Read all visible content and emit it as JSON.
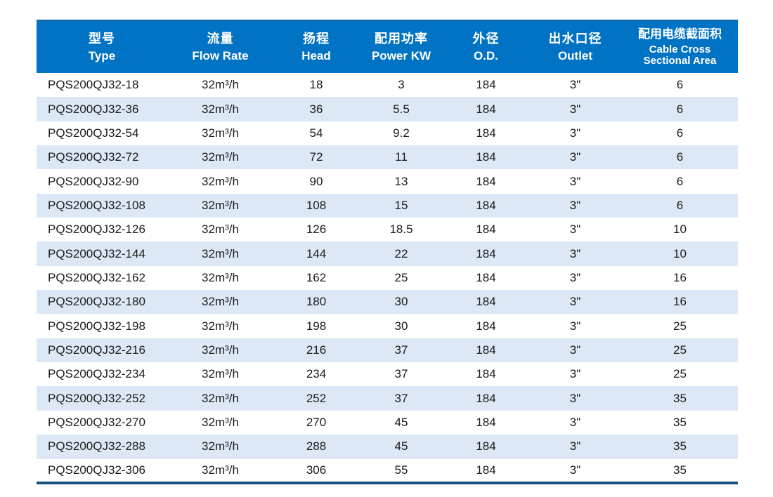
{
  "table": {
    "title_semantic": "submersible-pump-specifications",
    "column_keys": [
      "type",
      "flow-rate",
      "head",
      "power-kw",
      "od",
      "outlet",
      "cable-cross-sectional-area"
    ],
    "columns": [
      {
        "zh": "型号",
        "en": "Type"
      },
      {
        "zh": "流量",
        "en": "Flow Rate"
      },
      {
        "zh": "扬程",
        "en": "Head"
      },
      {
        "zh": "配用功率",
        "en": "Power KW"
      },
      {
        "zh": "外径",
        "en": "O.D."
      },
      {
        "zh": "出水口径",
        "en": "Outlet"
      },
      {
        "zh": "配用电缆截面积",
        "en": "Cable Cross Sectional Area"
      }
    ],
    "rows": [
      [
        "PQS200QJ32-18",
        "32m³/h",
        "18",
        "3",
        "184",
        "3\"",
        "6"
      ],
      [
        "PQS200QJ32-36",
        "32m³/h",
        "36",
        "5.5",
        "184",
        "3\"",
        "6"
      ],
      [
        "PQS200QJ32-54",
        "32m³/h",
        "54",
        "9.2",
        "184",
        "3\"",
        "6"
      ],
      [
        "PQS200QJ32-72",
        "32m³/h",
        "72",
        "11",
        "184",
        "3\"",
        "6"
      ],
      [
        "PQS200QJ32-90",
        "32m³/h",
        "90",
        "13",
        "184",
        "3\"",
        "6"
      ],
      [
        "PQS200QJ32-108",
        "32m³/h",
        "108",
        "15",
        "184",
        "3\"",
        "6"
      ],
      [
        "PQS200QJ32-126",
        "32m³/h",
        "126",
        "18.5",
        "184",
        "3\"",
        "10"
      ],
      [
        "PQS200QJ32-144",
        "32m³/h",
        "144",
        "22",
        "184",
        "3\"",
        "10"
      ],
      [
        "PQS200QJ32-162",
        "32m³/h",
        "162",
        "25",
        "184",
        "3\"",
        "16"
      ],
      [
        "PQS200QJ32-180",
        "32m³/h",
        "180",
        "30",
        "184",
        "3\"",
        "16"
      ],
      [
        "PQS200QJ32-198",
        "32m³/h",
        "198",
        "30",
        "184",
        "3\"",
        "25"
      ],
      [
        "PQS200QJ32-216",
        "32m³/h",
        "216",
        "37",
        "184",
        "3\"",
        "25"
      ],
      [
        "PQS200QJ32-234",
        "32m³/h",
        "234",
        "37",
        "184",
        "3\"",
        "25"
      ],
      [
        "PQS200QJ32-252",
        "32m³/h",
        "252",
        "37",
        "184",
        "3\"",
        "35"
      ],
      [
        "PQS200QJ32-270",
        "32m³/h",
        "270",
        "45",
        "184",
        "3\"",
        "35"
      ],
      [
        "PQS200QJ32-288",
        "32m³/h",
        "288",
        "45",
        "184",
        "3\"",
        "35"
      ],
      [
        "PQS200QJ32-306",
        "32m³/h",
        "306",
        "55",
        "184",
        "3\"",
        "35"
      ]
    ]
  },
  "colors": {
    "header_bg": "#0173c4",
    "header_text": "#ffffff",
    "row_alt_bg": "#dce8f5",
    "row_bg": "#ffffff",
    "body_text": "#1b1b1b",
    "bottom_border": "#15537f"
  }
}
